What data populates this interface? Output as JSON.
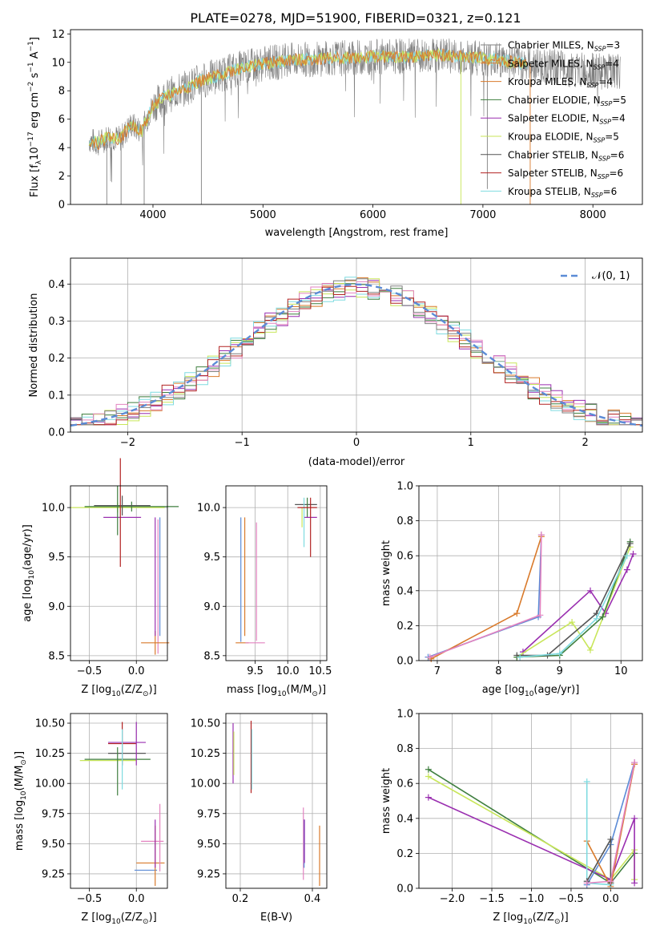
{
  "figure_title": "PLATE=0278, MJD=51900, FIBERID=0321, z=0.121",
  "colors": {
    "orange": "#d97a2b",
    "gray": "#7f7f7f",
    "purple": "#9a2fb0",
    "yellowgreen": "#c8e65a",
    "darkgray": "#555555",
    "red": "#b22222",
    "cyan": "#7fdbe0",
    "blue": "#5b8bd6",
    "pink": "#e383c0",
    "green": "#3f7f3f"
  },
  "chart_data": [
    {
      "id": "spectrum",
      "type": "line",
      "title": "PLATE=0278, MJD=51900, FIBERID=0321, z=0.121",
      "xlabel": "wavelength [Angstrom, rest frame]",
      "ylabel_parts": [
        "Flux [f",
        "λ",
        "10",
        "−17",
        " erg cm",
        "−2",
        " s",
        "−1",
        " A",
        "−1",
        "]"
      ],
      "xlim": [
        3250,
        8450
      ],
      "ylim": [
        0,
        12.3
      ],
      "xticks": [
        "4000",
        "5000",
        "6000",
        "7000",
        "8000"
      ],
      "yticks": [
        "0",
        "2",
        "4",
        "6",
        "8",
        "10",
        "12"
      ],
      "grid": false,
      "legend_position": "top-right",
      "continuum": {
        "x": [
          3400,
          3500,
          3600,
          3700,
          3800,
          3900,
          4000,
          4100,
          4200,
          4300,
          4400,
          4600,
          4800,
          5000,
          5200,
          5400,
          5600,
          5800,
          6000,
          6200,
          6400,
          6600,
          6800,
          7000,
          7200,
          7400,
          7600,
          7800,
          8000,
          8200
        ],
        "y": [
          4.6,
          4.3,
          4.8,
          4.6,
          5.6,
          5.2,
          7.0,
          7.5,
          7.9,
          8.2,
          8.6,
          9.1,
          9.6,
          9.9,
          10.1,
          10.2,
          10.3,
          10.3,
          10.4,
          10.4,
          10.4,
          10.5,
          10.4,
          10.3,
          10.1,
          9.9,
          9.7,
          9.5,
          9.4,
          9.3
        ]
      },
      "series": [
        {
          "name": "Chabrier MILES",
          "nssp": "3",
          "color": "#7f7f7f"
        },
        {
          "name": "Salpeter MILES",
          "nssp": "4",
          "color": "#d97a2b"
        },
        {
          "name": "Kroupa MILES",
          "nssp": "4",
          "color": "#d97a2b"
        },
        {
          "name": "Chabrier ELODIE",
          "nssp": "5",
          "color": "#3f7f3f"
        },
        {
          "name": "Salpeter ELODIE",
          "nssp": "4",
          "color": "#9a2fb0"
        },
        {
          "name": "Kroupa ELODIE",
          "nssp": "5",
          "color": "#c8e65a"
        },
        {
          "name": "Chabrier STELIB",
          "nssp": "6",
          "color": "#555555"
        },
        {
          "name": "Salpeter STELIB",
          "nssp": "6",
          "color": "#b22222"
        },
        {
          "name": "Kroupa STELIB",
          "nssp": "6",
          "color": "#7fdbe0"
        }
      ]
    },
    {
      "id": "residuals",
      "type": "line",
      "xlabel": "(data-model)/error",
      "ylabel": "Normed distribution",
      "xlim": [
        -2.5,
        2.5
      ],
      "ylim": [
        0,
        0.47
      ],
      "xticks": [
        "−2",
        "−1",
        "0",
        "1",
        "2"
      ],
      "yticks": [
        "0.0",
        "0.1",
        "0.2",
        "0.3",
        "0.4"
      ],
      "grid": true,
      "legend": "𝒩(0, 1)",
      "legend_position": "top-right",
      "normal": {
        "mean": 0,
        "sigma": 1,
        "color": "#5b8bd6"
      },
      "histogram_bins": [
        -2.5,
        -2.4,
        -2.3,
        -2.2,
        -2.1,
        -2.0,
        -1.9,
        -1.8,
        -1.7,
        -1.6,
        -1.5,
        -1.4,
        -1.3,
        -1.2,
        -1.1,
        -1.0,
        -0.9,
        -0.8,
        -0.7,
        -0.6,
        -0.5,
        -0.4,
        -0.3,
        -0.2,
        -0.1,
        0.0,
        0.1,
        0.2,
        0.3,
        0.4,
        0.5,
        0.6,
        0.7,
        0.8,
        0.9,
        1.0,
        1.1,
        1.2,
        1.3,
        1.4,
        1.5,
        1.6,
        1.7,
        1.8,
        1.9,
        2.0,
        2.1,
        2.2,
        2.3,
        2.4,
        2.5
      ],
      "histogram_colors": [
        "#d97a2b",
        "#9a2fb0",
        "#c8e65a",
        "#3f7f3f",
        "#7fdbe0",
        "#e383c0",
        "#b22222",
        "#7f7f7f"
      ]
    },
    {
      "id": "age-vs-z",
      "type": "scatter",
      "xlabel_parts": [
        "Z [log",
        "10",
        "(Z/Z",
        "⊙",
        ")]"
      ],
      "ylabel_parts": [
        "age  [log",
        "10",
        "(age/yr)]"
      ],
      "xlim": [
        -0.7,
        0.33
      ],
      "ylim": [
        8.45,
        10.22
      ],
      "xticks": [
        {
          "v": -0.5,
          "t": "−0.5"
        },
        {
          "v": 0.0,
          "t": "0.0"
        }
      ],
      "yticks": [
        {
          "v": 8.5,
          "t": "8.5"
        },
        {
          "v": 9.0,
          "t": "9.0"
        },
        {
          "v": 9.5,
          "t": "9.5"
        },
        {
          "v": 10.0,
          "t": "10.0"
        }
      ],
      "grid": true,
      "points": [
        {
          "x": -0.2,
          "y": 10.0,
          "xerr": 0.5,
          "yerr": 0.05,
          "color": "#c8e65a"
        },
        {
          "x": -0.05,
          "y": 10.01,
          "xerr": 0.5,
          "yerr": 0.05,
          "color": "#3f7f3f"
        },
        {
          "x": -0.15,
          "y": 10.02,
          "xerr": 0.3,
          "yerr": 0.1,
          "color": "#555555"
        },
        {
          "x": -0.15,
          "y": 9.9,
          "xerr": 0.2,
          "yerr": 0.0,
          "color": "#9a2fb0"
        },
        {
          "x": -0.17,
          "y": 9.95,
          "xerr": 0.0,
          "yerr": 0.55,
          "color": "#b22222"
        },
        {
          "x": -0.2,
          "y": 9.97,
          "xerr": 0.0,
          "yerr": 0.25,
          "color": "#3f7f3f"
        },
        {
          "x": 0.25,
          "y": 9.3,
          "xerr": 0.0,
          "yerr": 0.6,
          "color": "#5b8bd6"
        },
        {
          "x": 0.23,
          "y": 9.2,
          "xerr": 0.0,
          "yerr": 0.68,
          "color": "#e383c0"
        },
        {
          "x": 0.2,
          "y": 8.63,
          "xerr": 0.15,
          "yerr": 0.12,
          "color": "#d97a2b"
        },
        {
          "x": 0.2,
          "y": 9.3,
          "xerr": 0.0,
          "yerr": 0.6,
          "color": "#9a2fb0"
        }
      ]
    },
    {
      "id": "age-vs-mass",
      "type": "scatter",
      "xlabel_parts": [
        "mass [log",
        "10",
        "(M/M",
        "⊙",
        ")]"
      ],
      "xlim": [
        9.05,
        10.6
      ],
      "ylim": [
        8.45,
        10.22
      ],
      "xticks": [
        {
          "v": 9.5,
          "t": "9.5"
        },
        {
          "v": 10.0,
          "t": "10.0"
        },
        {
          "v": 10.5,
          "t": "10.5"
        }
      ],
      "yticks": [
        {
          "v": 8.5,
          "t": "8.5"
        },
        {
          "v": 9.0,
          "t": "9.0"
        },
        {
          "v": 9.5,
          "t": "9.5"
        },
        {
          "v": 10.0,
          "t": "10.0"
        }
      ],
      "grid": true,
      "points": [
        {
          "x": 9.3,
          "y": 8.63,
          "xerr": 0.1,
          "yerr": 0.0,
          "color": "#d97a2b"
        },
        {
          "x": 9.5,
          "y": 8.63,
          "xerr": 0.15,
          "yerr": 0.0,
          "color": "#e383c0"
        },
        {
          "x": 9.28,
          "y": 9.27,
          "xerr": 0.0,
          "yerr": 0.63,
          "color": "#5b8bd6"
        },
        {
          "x": 9.52,
          "y": 9.25,
          "xerr": 0.0,
          "yerr": 0.6,
          "color": "#e383c0"
        },
        {
          "x": 9.34,
          "y": 9.3,
          "xerr": 0.0,
          "yerr": 0.6,
          "color": "#d97a2b"
        },
        {
          "x": 10.28,
          "y": 10.03,
          "xerr": 0.17,
          "yerr": 0.0,
          "color": "#555555"
        },
        {
          "x": 10.3,
          "y": 10.0,
          "xerr": 0.0,
          "yerr": 0.1,
          "color": "#3f7f3f"
        },
        {
          "x": 10.22,
          "y": 9.9,
          "xerr": 0.0,
          "yerr": 0.1,
          "color": "#c8e65a"
        },
        {
          "x": 10.35,
          "y": 9.9,
          "xerr": 0.1,
          "yerr": 0.0,
          "color": "#9a2fb0"
        },
        {
          "x": 10.35,
          "y": 9.8,
          "xerr": 0.0,
          "yerr": 0.3,
          "color": "#b22222"
        },
        {
          "x": 10.25,
          "y": 9.85,
          "xerr": 0.0,
          "yerr": 0.25,
          "color": "#7fdbe0"
        },
        {
          "x": 10.3,
          "y": 10.0,
          "xerr": 0.15,
          "yerr": 0.0,
          "color": "#b22222"
        }
      ]
    },
    {
      "id": "weight-vs-age",
      "type": "line",
      "xlabel_parts": [
        "age  [log",
        "10",
        "(age/yr)]"
      ],
      "ylabel": "mass weight",
      "xlim": [
        6.7,
        10.35
      ],
      "ylim": [
        0,
        1.0
      ],
      "xticks": [
        {
          "v": 7,
          "t": "7"
        },
        {
          "v": 8,
          "t": "8"
        },
        {
          "v": 9,
          "t": "9"
        },
        {
          "v": 10,
          "t": "10"
        }
      ],
      "yticks": [
        {
          "v": 0.0,
          "t": "0.0"
        },
        {
          "v": 0.2,
          "t": "0.2"
        },
        {
          "v": 0.4,
          "t": "0.4"
        },
        {
          "v": 0.6,
          "t": "0.6"
        },
        {
          "v": 0.8,
          "t": "0.8"
        },
        {
          "v": 1.0,
          "t": "1.0"
        }
      ],
      "grid": true,
      "series": [
        {
          "color": "#5b8bd6",
          "x": [
            6.85,
            8.65,
            8.7
          ],
          "y": [
            0.02,
            0.25,
            0.72
          ]
        },
        {
          "color": "#d97a2b",
          "x": [
            6.9,
            8.3,
            8.7
          ],
          "y": [
            0.01,
            0.27,
            0.71
          ]
        },
        {
          "color": "#e383c0",
          "x": [
            6.88,
            8.68,
            8.7
          ],
          "y": [
            0.02,
            0.26,
            0.72
          ]
        },
        {
          "color": "#9a2fb0",
          "x": [
            8.4,
            9.5,
            9.75,
            10.1,
            10.2
          ],
          "y": [
            0.05,
            0.4,
            0.27,
            0.52,
            0.61
          ]
        },
        {
          "color": "#c8e65a",
          "x": [
            8.3,
            9.2,
            9.5,
            10.15
          ],
          "y": [
            0.02,
            0.22,
            0.06,
            0.65
          ]
        },
        {
          "color": "#3f7f3f",
          "x": [
            8.3,
            9.0,
            9.7,
            10.15
          ],
          "y": [
            0.02,
            0.03,
            0.25,
            0.68
          ]
        },
        {
          "color": "#555555",
          "x": [
            8.3,
            8.8,
            9.6,
            10.15
          ],
          "y": [
            0.03,
            0.03,
            0.27,
            0.67
          ]
        },
        {
          "color": "#7fdbe0",
          "x": [
            8.35,
            9.0,
            9.6,
            10.1
          ],
          "y": [
            0.02,
            0.04,
            0.24,
            0.6
          ]
        }
      ]
    },
    {
      "id": "mass-vs-z",
      "type": "scatter",
      "xlabel_parts": [
        "Z [log",
        "10",
        "(Z/Z",
        "⊙",
        ")]"
      ],
      "ylabel_parts": [
        "mass [log",
        "10",
        "(M/M",
        "⊙",
        ")]"
      ],
      "xlim": [
        -0.7,
        0.33
      ],
      "ylim": [
        9.13,
        10.58
      ],
      "xticks": [
        {
          "v": -0.5,
          "t": "−0.5"
        },
        {
          "v": 0.0,
          "t": "0.0"
        }
      ],
      "yticks": [
        {
          "v": 9.25,
          "t": "9.25"
        },
        {
          "v": 9.5,
          "t": "9.50"
        },
        {
          "v": 9.75,
          "t": "9.75"
        },
        {
          "v": 10.0,
          "t": "10.00"
        },
        {
          "v": 10.25,
          "t": "10.25"
        },
        {
          "v": 10.5,
          "t": "10.50"
        }
      ],
      "grid": true,
      "points": [
        {
          "x": -0.3,
          "y": 10.19,
          "xerr": 0.3,
          "yerr": 0.0,
          "color": "#c8e65a"
        },
        {
          "x": -0.2,
          "y": 10.2,
          "xerr": 0.35,
          "yerr": 0.0,
          "color": "#3f7f3f"
        },
        {
          "x": -0.1,
          "y": 10.25,
          "xerr": 0.2,
          "yerr": 0.0,
          "color": "#555555"
        },
        {
          "x": -0.1,
          "y": 10.34,
          "xerr": 0.2,
          "yerr": 0.0,
          "color": "#9a2fb0"
        },
        {
          "x": -0.15,
          "y": 10.33,
          "xerr": 0.15,
          "yerr": 0.18,
          "color": "#b22222"
        },
        {
          "x": -0.2,
          "y": 10.1,
          "xerr": 0.0,
          "yerr": 0.2,
          "color": "#3f7f3f"
        },
        {
          "x": 0.0,
          "y": 10.33,
          "xerr": 0.0,
          "yerr": 0.18,
          "color": "#9a2fb0"
        },
        {
          "x": 0.15,
          "y": 9.34,
          "xerr": 0.15,
          "yerr": 0.0,
          "color": "#d97a2b"
        },
        {
          "x": 0.1,
          "y": 9.28,
          "xerr": 0.12,
          "yerr": 0.0,
          "color": "#5b8bd6"
        },
        {
          "x": 0.17,
          "y": 9.52,
          "xerr": 0.12,
          "yerr": 0.0,
          "color": "#e383c0"
        },
        {
          "x": 0.2,
          "y": 9.4,
          "xerr": 0.0,
          "yerr": 0.25,
          "color": "#d97a2b"
        },
        {
          "x": 0.25,
          "y": 9.55,
          "xerr": 0.0,
          "yerr": 0.28,
          "color": "#e383c0"
        },
        {
          "x": 0.2,
          "y": 9.5,
          "xerr": 0.0,
          "yerr": 0.2,
          "color": "#9a2fb0"
        },
        {
          "x": -0.15,
          "y": 10.2,
          "xerr": 0.0,
          "yerr": 0.25,
          "color": "#7fdbe0"
        }
      ]
    },
    {
      "id": "mass-vs-ebv",
      "type": "scatter",
      "xlabel": "E(B-V)",
      "xlim": [
        0.16,
        0.44
      ],
      "ylim": [
        9.13,
        10.58
      ],
      "xticks": [
        {
          "v": 0.2,
          "t": "0.2"
        },
        {
          "v": 0.4,
          "t": "0.4"
        }
      ],
      "yticks": [
        {
          "v": 9.25,
          "t": "9.25"
        },
        {
          "v": 9.5,
          "t": "9.50"
        },
        {
          "v": 9.75,
          "t": "9.75"
        },
        {
          "v": 10.0,
          "t": "10.00"
        },
        {
          "v": 10.25,
          "t": "10.25"
        },
        {
          "v": 10.5,
          "t": "10.50"
        }
      ],
      "grid": true,
      "points": [
        {
          "x": 0.18,
          "y": 10.25,
          "xerr": 0.0,
          "yerr": 0.25,
          "color": "#9a2fb0"
        },
        {
          "x": 0.182,
          "y": 10.25,
          "xerr": 0.0,
          "yerr": 0.18,
          "color": "#c8e65a"
        },
        {
          "x": 0.23,
          "y": 10.22,
          "xerr": 0.0,
          "yerr": 0.3,
          "color": "#b22222"
        },
        {
          "x": 0.232,
          "y": 10.2,
          "xerr": 0.0,
          "yerr": 0.25,
          "color": "#7fdbe0"
        },
        {
          "x": 0.375,
          "y": 9.5,
          "xerr": 0.0,
          "yerr": 0.3,
          "color": "#e383c0"
        },
        {
          "x": 0.377,
          "y": 9.5,
          "xerr": 0.0,
          "yerr": 0.2,
          "color": "#5b8bd6"
        },
        {
          "x": 0.378,
          "y": 9.52,
          "xerr": 0.0,
          "yerr": 0.18,
          "color": "#9a2fb0"
        },
        {
          "x": 0.42,
          "y": 9.4,
          "xerr": 0.0,
          "yerr": 0.25,
          "color": "#d97a2b"
        }
      ]
    },
    {
      "id": "weight-vs-z",
      "type": "line",
      "xlabel_parts": [
        "Z [log",
        "10",
        "(Z/Z",
        "⊙",
        ")]"
      ],
      "ylabel": "mass weight",
      "xlim": [
        -2.42,
        0.4
      ],
      "ylim": [
        0,
        1.0
      ],
      "xticks": [
        {
          "v": -2.0,
          "t": "−2.0"
        },
        {
          "v": -1.5,
          "t": "−1.5"
        },
        {
          "v": -1.0,
          "t": "−1.0"
        },
        {
          "v": -0.5,
          "t": "−0.5"
        },
        {
          "v": 0.0,
          "t": "0.0"
        }
      ],
      "yticks": [
        {
          "v": 0.0,
          "t": "0.0"
        },
        {
          "v": 0.2,
          "t": "0.2"
        },
        {
          "v": 0.4,
          "t": "0.4"
        },
        {
          "v": 0.6,
          "t": "0.6"
        },
        {
          "v": 0.8,
          "t": "0.8"
        },
        {
          "v": 1.0,
          "t": "1.0"
        }
      ],
      "grid": true,
      "series": [
        {
          "color": "#3f7f3f",
          "x": [
            -2.3,
            0.0,
            0.3
          ],
          "y": [
            0.68,
            0.03,
            0.2
          ]
        },
        {
          "color": "#c8e65a",
          "x": [
            -2.3,
            0.0,
            0.3,
            0.3
          ],
          "y": [
            0.64,
            0.05,
            0.22,
            0.05
          ]
        },
        {
          "color": "#9a2fb0",
          "x": [
            -2.3,
            0.0,
            0.3,
            0.3
          ],
          "y": [
            0.52,
            0.05,
            0.4,
            0.03
          ]
        },
        {
          "color": "#5b8bd6",
          "x": [
            -0.3,
            0.0,
            0.3
          ],
          "y": [
            0.02,
            0.25,
            0.72
          ]
        },
        {
          "color": "#d97a2b",
          "x": [
            -0.3,
            0.0,
            0.3
          ],
          "y": [
            0.27,
            0.01,
            0.71
          ]
        },
        {
          "color": "#7fdbe0",
          "x": [
            -0.3,
            -0.3,
            0.0
          ],
          "y": [
            0.61,
            0.03,
            0.02
          ]
        },
        {
          "color": "#555555",
          "x": [
            -0.3,
            0.0,
            0.0
          ],
          "y": [
            0.04,
            0.28,
            0.03
          ]
        },
        {
          "color": "#e383c0",
          "x": [
            -0.3,
            0.0,
            0.3
          ],
          "y": [
            0.03,
            0.04,
            0.72
          ]
        }
      ]
    }
  ]
}
